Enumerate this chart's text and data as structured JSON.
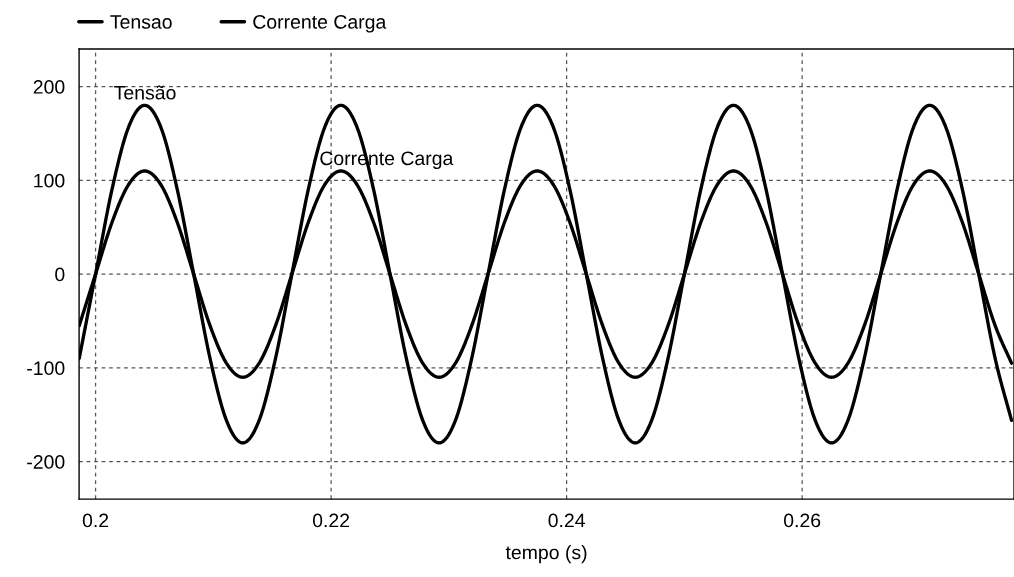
{
  "chart_data": {
    "type": "line",
    "xlabel": "tempo (s)",
    "x": [
      0.19861,
      0.2,
      0.20139,
      0.20278,
      0.20417,
      0.20556,
      0.20694,
      0.20833,
      0.20972,
      0.21111,
      0.2125,
      0.21389,
      0.21528,
      0.21667,
      0.21806,
      0.21944,
      0.22083,
      0.22222,
      0.22361,
      0.225,
      0.22639,
      0.22778,
      0.22917,
      0.23056,
      0.23194,
      0.23333,
      0.23472,
      0.23611,
      0.2375,
      0.23889,
      0.24028,
      0.24167,
      0.24306,
      0.24444,
      0.24583,
      0.24722,
      0.24861,
      0.25,
      0.25139,
      0.25278,
      0.25417,
      0.25556,
      0.25694,
      0.25833,
      0.25972,
      0.26111,
      0.2625,
      0.26389,
      0.26528,
      0.26667,
      0.26806,
      0.26944,
      0.27083,
      0.27222,
      0.27361,
      0.275,
      0.27639,
      0.27778
    ],
    "series": [
      {
        "name": "Tensao",
        "color": "#000000",
        "values": [
          -90,
          0,
          90,
          156,
          180,
          156,
          90,
          0,
          -90,
          -156,
          -180,
          -156,
          -90,
          0,
          90,
          156,
          180,
          156,
          90,
          0,
          -90,
          -156,
          -180,
          -156,
          -90,
          0,
          90,
          156,
          180,
          156,
          90,
          0,
          -90,
          -156,
          -180,
          -156,
          -90,
          0,
          90,
          156,
          180,
          156,
          90,
          0,
          -90,
          -156,
          -180,
          -156,
          -90,
          0,
          90,
          156,
          180,
          156,
          90,
          0,
          -90,
          -156
        ]
      },
      {
        "name": "Corrente Carga",
        "color": "#000000",
        "values": [
          -55,
          0,
          55,
          95,
          110,
          95,
          55,
          0,
          -55,
          -95,
          -110,
          -95,
          -55,
          0,
          55,
          95,
          110,
          95,
          55,
          0,
          -55,
          -95,
          -110,
          -95,
          -55,
          0,
          55,
          95,
          110,
          95,
          55,
          0,
          -55,
          -95,
          -110,
          -95,
          -55,
          0,
          55,
          95,
          110,
          95,
          55,
          0,
          -55,
          -95,
          -110,
          -95,
          -55,
          0,
          55,
          95,
          110,
          95,
          55,
          0,
          -55,
          -95
        ]
      }
    ],
    "annotations": [
      {
        "text": "Tensão",
        "x": 0.2042,
        "y": 182
      },
      {
        "text": "Corrente Carga",
        "x": 0.219,
        "y": 112
      }
    ],
    "xlim": [
      0.1986,
      0.27799
    ],
    "xticks": [
      0.2,
      0.22,
      0.24,
      0.26
    ],
    "ylim": [
      -240,
      240
    ],
    "yticks": [
      -200,
      -100,
      0,
      100,
      200
    ],
    "grid": true,
    "legend": "top left",
    "line_style": "solid"
  }
}
